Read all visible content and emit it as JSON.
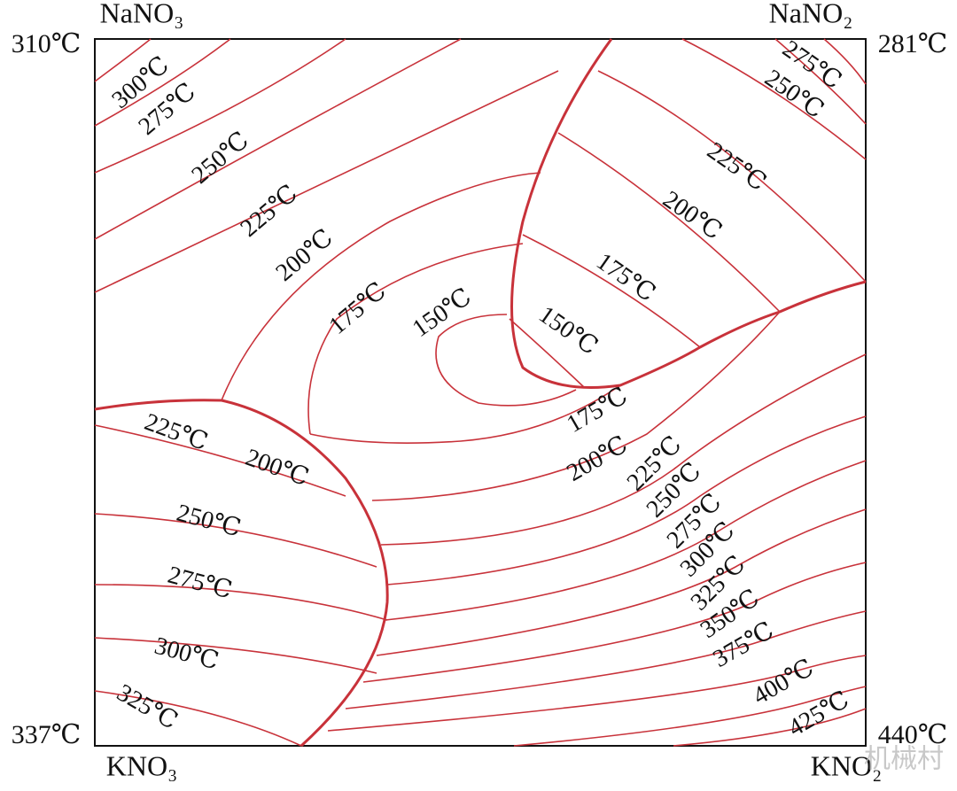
{
  "corners": {
    "top_left": {
      "salt": "NaNO₃",
      "temperature": "310℃"
    },
    "top_right": {
      "salt": "NaNO₂",
      "temperature": "281℃"
    },
    "bottom_left": {
      "salt": "KNO₃",
      "temperature": "337℃"
    },
    "bottom_right": {
      "salt": "KNO₂",
      "temperature": "440℃"
    }
  },
  "isotherm_labels": [
    "300℃",
    "275℃",
    "250℃",
    "225℃",
    "200℃",
    "175℃",
    "150℃",
    "275℃",
    "250℃",
    "225℃",
    "200℃",
    "175℃",
    "150℃",
    "175℃",
    "200℃",
    "225℃",
    "250℃",
    "275℃",
    "300℃",
    "325℃",
    "350℃",
    "375℃",
    "400℃",
    "425℃",
    "225℃",
    "200℃",
    "250℃",
    "275℃",
    "300℃",
    "325℃"
  ],
  "watermark": "机械村"
}
